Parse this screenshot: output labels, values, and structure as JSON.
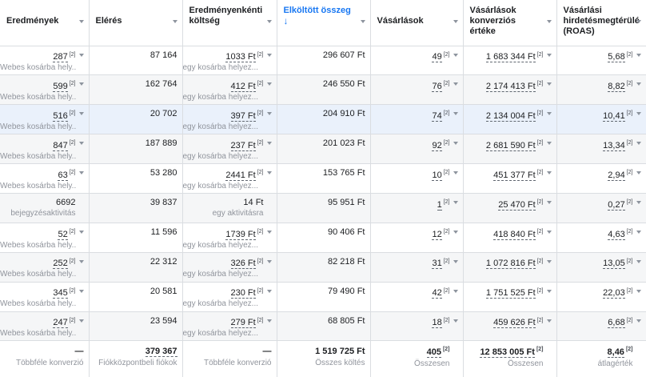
{
  "headers": [
    {
      "label": "Eredmények",
      "sorted": false
    },
    {
      "label": "Elérés",
      "sorted": false
    },
    {
      "label": "Eredményenkénti költség",
      "sorted": false
    },
    {
      "label": "Elköltött összeg",
      "sorted": true,
      "arrow": "↓"
    },
    {
      "label": "Vásárlások",
      "sorted": false
    },
    {
      "label": "Vásárlások konverziós értéke",
      "sorted": false
    },
    {
      "label": "Vásárlási hirdetésmegtérülé (ROAS)",
      "sorted": false
    }
  ],
  "footnote_mark": "[2]",
  "rows": [
    {
      "results": "287",
      "results_sub": "Webes kosárba hely...",
      "reach": "87 164",
      "cpr": "1033 Ft",
      "cpr_sub": "egy kosárba helyez...",
      "spent": "296 607 Ft",
      "purchases": "49",
      "conv_value": "1 683 344 Ft",
      "roas": "5,68"
    },
    {
      "results": "599",
      "results_sub": "Webes kosárba hely...",
      "reach": "162 764",
      "cpr": "412 Ft",
      "cpr_sub": "egy kosárba helyez...",
      "spent": "246 550 Ft",
      "purchases": "76",
      "conv_value": "2 174 413 Ft",
      "roas": "8,82"
    },
    {
      "results": "516",
      "results_sub": "Webes kosárba hely...",
      "reach": "20 702",
      "cpr": "397 Ft",
      "cpr_sub": "egy kosárba helyez...",
      "spent": "204 910 Ft",
      "purchases": "74",
      "conv_value": "2 134 004 Ft",
      "roas": "10,41"
    },
    {
      "results": "847",
      "results_sub": "Webes kosárba hely...",
      "reach": "187 889",
      "cpr": "237 Ft",
      "cpr_sub": "egy kosárba helyez...",
      "spent": "201 023 Ft",
      "purchases": "92",
      "conv_value": "2 681 590 Ft",
      "roas": "13,34"
    },
    {
      "results": "63",
      "results_sub": "Webes kosárba hely...",
      "reach": "53 280",
      "cpr": "2441 Ft",
      "cpr_sub": "egy kosárba helyez...",
      "spent": "153 765 Ft",
      "purchases": "10",
      "conv_value": "451 377 Ft",
      "roas": "2,94"
    },
    {
      "results": "6692",
      "results_sub": "bejegyzésaktivitás",
      "reach": "39 837",
      "cpr": "14 Ft",
      "cpr_sub": "egy aktivitásra",
      "spent": "95 951 Ft",
      "purchases": "1",
      "conv_value": "25 470 Ft",
      "roas": "0,27",
      "plain": true
    },
    {
      "results": "52",
      "results_sub": "Webes kosárba hely...",
      "reach": "11 596",
      "cpr": "1739 Ft",
      "cpr_sub": "egy kosárba helyez...",
      "spent": "90 406 Ft",
      "purchases": "12",
      "conv_value": "418 840 Ft",
      "roas": "4,63"
    },
    {
      "results": "252",
      "results_sub": "Webes kosárba hely...",
      "reach": "22 312",
      "cpr": "326 Ft",
      "cpr_sub": "egy kosárba helyez...",
      "spent": "82 218 Ft",
      "purchases": "31",
      "conv_value": "1 072 816 Ft",
      "roas": "13,05"
    },
    {
      "results": "345",
      "results_sub": "Webes kosárba hely...",
      "reach": "20 581",
      "cpr": "230 Ft",
      "cpr_sub": "egy kosárba helyez...",
      "spent": "79 490 Ft",
      "purchases": "42",
      "conv_value": "1 751 525 Ft",
      "roas": "22,03"
    },
    {
      "results": "247",
      "results_sub": "Webes kosárba hely...",
      "reach": "23 594",
      "cpr": "279 Ft",
      "cpr_sub": "egy kosárba helyez...",
      "spent": "68 805 Ft",
      "purchases": "18",
      "conv_value": "459 626 Ft",
      "roas": "6,68"
    }
  ],
  "totals": {
    "results": "—",
    "results_sub": "Többféle konverzió",
    "reach": "379 367",
    "reach_sub": "Fiókközpontbeli fiókok",
    "cpr": "—",
    "cpr_sub": "Többféle konverzió",
    "spent": "1 519 725 Ft",
    "spent_sub": "Összes költés",
    "purchases": "405",
    "purchases_sub": "Összesen",
    "conv_value": "12 853 005 Ft",
    "conv_value_sub": "Összesen",
    "roas": "8,46",
    "roas_sub": "átlagérték"
  }
}
